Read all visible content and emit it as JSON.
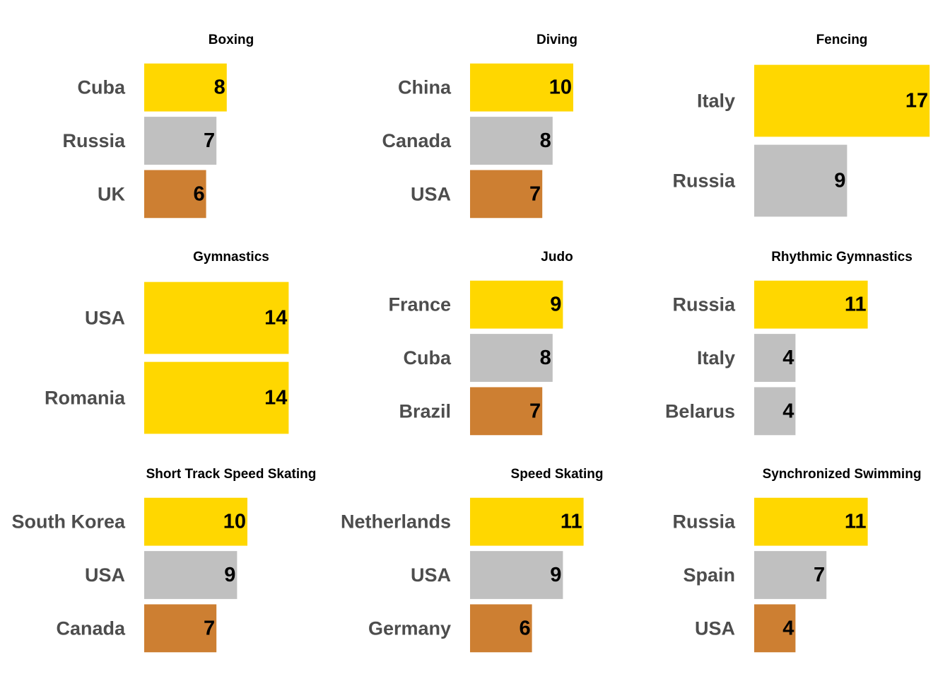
{
  "colors": {
    "gold": "#FFD700",
    "silver": "#C0C0C0",
    "bronze": "#CD7F32",
    "category_text": "#4d4d4d",
    "value_text": "#000000"
  },
  "chart_data": {
    "type": "bar",
    "orientation": "horizontal",
    "shared_x_scale": true,
    "grid": false,
    "panels": [
      {
        "title": "Boxing",
        "categories": [
          "Cuba",
          "Russia",
          "UK"
        ],
        "values": [
          8,
          7,
          6
        ],
        "medals": [
          "gold",
          "silver",
          "bronze"
        ]
      },
      {
        "title": "Diving",
        "categories": [
          "China",
          "Canada",
          "USA"
        ],
        "values": [
          10,
          8,
          7
        ],
        "medals": [
          "gold",
          "silver",
          "bronze"
        ]
      },
      {
        "title": "Fencing",
        "categories": [
          "Italy",
          "Russia"
        ],
        "values": [
          17,
          9
        ],
        "medals": [
          "gold",
          "silver"
        ]
      },
      {
        "title": "Gymnastics",
        "categories": [
          "USA",
          "Romania"
        ],
        "values": [
          14,
          14
        ],
        "medals": [
          "gold",
          "gold"
        ]
      },
      {
        "title": "Judo",
        "categories": [
          "France",
          "Cuba",
          "Brazil"
        ],
        "values": [
          9,
          8,
          7
        ],
        "medals": [
          "gold",
          "silver",
          "bronze"
        ]
      },
      {
        "title": "Rhythmic Gymnastics",
        "categories": [
          "Russia",
          "Italy",
          "Belarus"
        ],
        "values": [
          11,
          4,
          4
        ],
        "medals": [
          "gold",
          "silver",
          "silver"
        ]
      },
      {
        "title": "Short Track Speed Skating",
        "categories": [
          "South Korea",
          "USA",
          "Canada"
        ],
        "values": [
          10,
          9,
          7
        ],
        "medals": [
          "gold",
          "silver",
          "bronze"
        ]
      },
      {
        "title": "Speed Skating",
        "categories": [
          "Netherlands",
          "USA",
          "Germany"
        ],
        "values": [
          11,
          9,
          6
        ],
        "medals": [
          "gold",
          "silver",
          "bronze"
        ]
      },
      {
        "title": "Synchronized Swimming",
        "categories": [
          "Russia",
          "Spain",
          "USA"
        ],
        "values": [
          11,
          7,
          4
        ],
        "medals": [
          "gold",
          "silver",
          "bronze"
        ]
      }
    ]
  }
}
